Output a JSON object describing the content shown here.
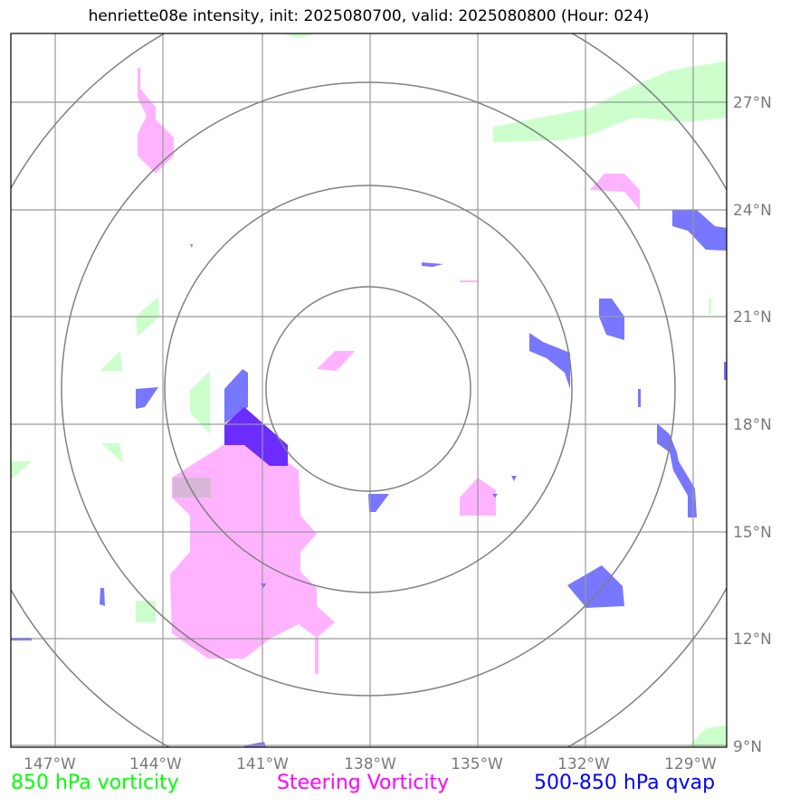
{
  "title": "henriette08e intensity, init: 2025080700, valid: 2025080800 (Hour: 024)",
  "lon_ticks": [
    "147°W",
    "144°W",
    "141°W",
    "138°W",
    "135°W",
    "132°W",
    "129°W"
  ],
  "lat_ticks": [
    "27°N",
    "24°N",
    "21°N",
    "18°N",
    "15°N",
    "12°N",
    "9°N"
  ],
  "legend": {
    "vorticity": {
      "label": "850 hPa vorticity",
      "color": "#00ff00"
    },
    "steering": {
      "label": "Steering Vorticity",
      "color": "#ff00ff"
    },
    "qvap": {
      "label": "500-850 hPa qvap",
      "color": "#0000ff"
    }
  },
  "colors": {
    "vorticity_fill": "#ccffcc",
    "steering_fill": "#ffb3ff",
    "qvap_fill": "#5555ff",
    "qvap_dark_fill": "#6a2cff",
    "grid": "#999999",
    "rings": "#808080"
  }
}
